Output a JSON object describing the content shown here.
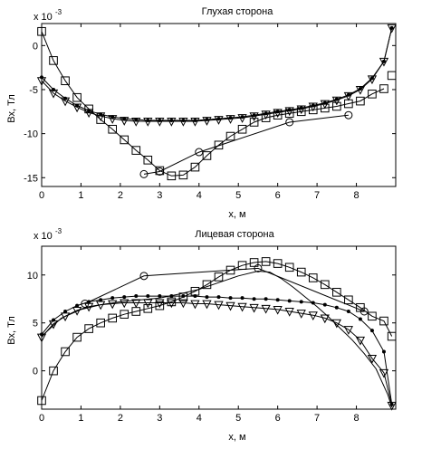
{
  "chart_data": [
    {
      "type": "line",
      "title": "Глухая сторона",
      "xlabel": "x, м",
      "ylabel": "Bx, Тл",
      "exponent_base": "x 10",
      "exponent_power": "-3",
      "xlim": [
        0,
        9.0
      ],
      "ylim": [
        -16,
        2.5
      ],
      "xticks": [
        0,
        1,
        2,
        3,
        4,
        5,
        6,
        7,
        8
      ],
      "yticks": [
        0,
        -5,
        -10,
        -15
      ],
      "grid": false,
      "series": [
        {
          "marker": "square",
          "x": [
            0,
            0.3,
            0.6,
            0.9,
            1.2,
            1.5,
            1.8,
            2.1,
            2.4,
            2.7,
            3.0,
            3.3,
            3.6,
            3.9,
            4.2,
            4.5,
            4.8,
            5.1,
            5.4,
            5.7,
            6.0,
            6.3,
            6.6,
            6.9,
            7.2,
            7.5,
            7.8,
            8.1,
            8.4,
            8.7
          ],
          "y": [
            1.6,
            -1.7,
            -4.0,
            -5.9,
            -7.2,
            -8.4,
            -9.5,
            -10.7,
            -11.9,
            -13.0,
            -14.2,
            -14.8,
            -14.7,
            -13.8,
            -12.5,
            -11.3,
            -10.3,
            -9.5,
            -8.7,
            -8.2,
            -7.9,
            -7.7,
            -7.5,
            -7.3,
            -7.1,
            -6.9,
            -6.6,
            -6.3,
            -5.5,
            -4.9
          ]
        },
        {
          "marker": "square",
          "x": [
            8.9
          ],
          "y": [
            -3.4
          ]
        },
        {
          "marker": "triangle-down",
          "x": [
            0,
            0.3,
            0.6,
            0.9,
            1.2,
            1.5,
            1.8,
            2.1,
            2.4,
            2.7,
            3.0,
            3.3,
            3.6,
            3.9,
            4.2,
            4.5,
            4.8,
            5.1,
            5.4,
            5.7,
            6.0,
            6.3,
            6.6,
            6.9,
            7.2,
            7.5,
            7.8,
            8.1,
            8.4,
            8.7,
            8.9
          ],
          "y": [
            -4.0,
            -5.4,
            -6.3,
            -7.0,
            -7.6,
            -8.0,
            -8.3,
            -8.5,
            -8.6,
            -8.6,
            -8.6,
            -8.6,
            -8.6,
            -8.6,
            -8.5,
            -8.4,
            -8.3,
            -8.2,
            -8.0,
            -7.8,
            -7.6,
            -7.4,
            -7.2,
            -6.9,
            -6.6,
            -6.2,
            -5.7,
            -5.0,
            -3.8,
            -1.8,
            2.0
          ]
        },
        {
          "marker": "dot",
          "x": [
            0,
            0.3,
            0.6,
            0.9,
            1.2,
            1.5,
            1.8,
            2.1,
            2.4,
            2.7,
            3.0,
            3.3,
            3.6,
            3.9,
            4.2,
            4.5,
            4.8,
            5.1,
            5.4,
            5.7,
            6.0,
            6.3,
            6.6,
            6.9,
            7.2,
            7.5,
            7.8,
            8.1,
            8.4,
            8.7,
            8.9
          ],
          "y": [
            -3.6,
            -5.0,
            -6.0,
            -6.8,
            -7.4,
            -7.8,
            -8.1,
            -8.3,
            -8.4,
            -8.5,
            -8.5,
            -8.5,
            -8.5,
            -8.5,
            -8.4,
            -8.3,
            -8.2,
            -8.1,
            -7.9,
            -7.7,
            -7.5,
            -7.3,
            -7.1,
            -6.8,
            -6.5,
            -6.1,
            -5.6,
            -4.9,
            -3.7,
            -1.8,
            2.0
          ]
        },
        {
          "marker": "circle",
          "x": [
            2.6,
            3.0,
            4.0,
            6.3,
            7.8
          ],
          "y": [
            -14.6,
            -14.3,
            -12.1,
            -8.7,
            -7.9
          ]
        }
      ]
    },
    {
      "type": "line",
      "title": "Лицевая сторона",
      "xlabel": "x, м",
      "ylabel": "Bx, Тл",
      "exponent_base": "x 10",
      "exponent_power": "-3",
      "xlim": [
        0,
        9.0
      ],
      "ylim": [
        -4,
        13
      ],
      "xticks": [
        0,
        1,
        2,
        3,
        4,
        5,
        6,
        7,
        8
      ],
      "yticks": [
        10,
        5,
        0
      ],
      "grid": false,
      "series": [
        {
          "marker": "square",
          "x": [
            0,
            0.3,
            0.6,
            0.9,
            1.2,
            1.5,
            1.8,
            2.1,
            2.4,
            2.7,
            3.0,
            3.3,
            3.6,
            3.9,
            4.2,
            4.5,
            4.8,
            5.1,
            5.4,
            5.7,
            6.0,
            6.3,
            6.6,
            6.9,
            7.2,
            7.5,
            7.8,
            8.1,
            8.4,
            8.7,
            8.9
          ],
          "y": [
            -3.1,
            0.0,
            2.0,
            3.5,
            4.4,
            5.0,
            5.5,
            5.9,
            6.2,
            6.5,
            6.8,
            7.2,
            7.7,
            8.3,
            9.0,
            9.8,
            10.5,
            11.0,
            11.3,
            11.4,
            11.2,
            10.8,
            10.3,
            9.7,
            9.0,
            8.2,
            7.4,
            6.6,
            5.7,
            5.2,
            3.6
          ]
        },
        {
          "marker": "triangle-down",
          "x": [
            0,
            0.3,
            0.6,
            0.9,
            1.2,
            1.5,
            1.8,
            2.1,
            2.4,
            2.7,
            3.0,
            3.3,
            3.6,
            3.9,
            4.2,
            4.5,
            4.8,
            5.1,
            5.4,
            5.7,
            6.0,
            6.3,
            6.6,
            6.9,
            7.2,
            7.5,
            7.8,
            8.1,
            8.4,
            8.7,
            8.9
          ],
          "y": [
            3.5,
            4.9,
            5.7,
            6.3,
            6.7,
            6.9,
            7.0,
            7.1,
            7.1,
            7.1,
            7.1,
            7.1,
            7.1,
            7.0,
            7.0,
            6.9,
            6.8,
            6.7,
            6.6,
            6.5,
            6.4,
            6.2,
            6.0,
            5.8,
            5.5,
            5.0,
            4.3,
            3.2,
            1.3,
            -0.2,
            -3.6
          ]
        },
        {
          "marker": "dot",
          "x": [
            0,
            0.3,
            0.6,
            0.9,
            1.2,
            1.5,
            1.8,
            2.1,
            2.4,
            2.7,
            3.0,
            3.3,
            3.6,
            3.9,
            4.2,
            4.5,
            4.8,
            5.1,
            5.4,
            5.7,
            6.0,
            6.3,
            6.6,
            6.9,
            7.2,
            7.5,
            7.8,
            8.1,
            8.4,
            8.7,
            8.9
          ],
          "y": [
            3.8,
            5.3,
            6.2,
            6.8,
            7.2,
            7.4,
            7.6,
            7.7,
            7.8,
            7.8,
            7.8,
            7.8,
            7.8,
            7.8,
            7.7,
            7.7,
            7.6,
            7.6,
            7.5,
            7.5,
            7.4,
            7.3,
            7.2,
            7.1,
            6.9,
            6.6,
            6.2,
            5.4,
            4.2,
            2.0,
            -3.5
          ]
        },
        {
          "marker": "circle",
          "x": [
            1.1,
            2.6,
            5.5,
            8.2
          ],
          "y": [
            7.0,
            9.9,
            10.7,
            6.2
          ]
        },
        {
          "marker": "none",
          "x": [
            0,
            0.5,
            1.0,
            1.5,
            2.0,
            2.5,
            3.0,
            3.5,
            4.0,
            4.5,
            5.0,
            5.5,
            5.8,
            6.1,
            6.4,
            6.7,
            7.0,
            7.3,
            7.6,
            7.9,
            8.2,
            8.5,
            8.8,
            8.9
          ],
          "y": [
            3.6,
            5.5,
            6.4,
            6.9,
            7.2,
            7.4,
            7.6,
            8.0,
            8.5,
            9.2,
            9.9,
            10.4,
            10.3,
            9.6,
            8.7,
            7.7,
            6.7,
            5.6,
            4.4,
            3.2,
            1.8,
            0.2,
            -2.5,
            -3.8
          ]
        }
      ]
    }
  ]
}
